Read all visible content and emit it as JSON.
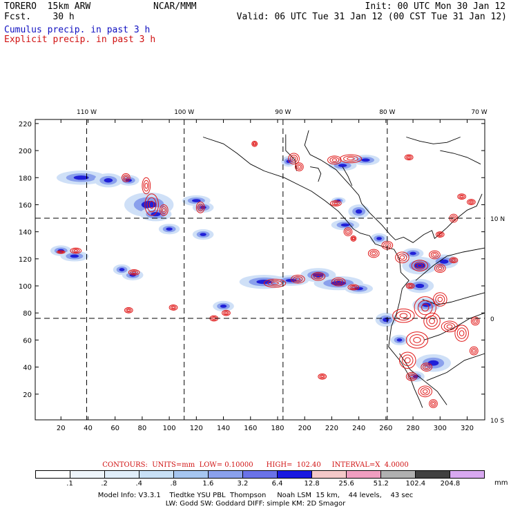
{
  "header": {
    "model": "TORERO  15km ARW",
    "fcst": "Fcst.    30 h",
    "org": "NCAR/MMM",
    "init": "Init: 00 UTC Mon 30 Jan 12",
    "valid": "Valid: 06 UTC Tue 31 Jan 12 (00 CST Tue 31 Jan 12)",
    "cumulus_label": "Cumulus precip. in past 3 h",
    "explicit_label": "Explicit precip. in past 3 h"
  },
  "colors": {
    "cumulus": "#1010c0",
    "explicit": "#d01010"
  },
  "chart_data": {
    "type": "map",
    "top_lon_ticks": [
      "110 W",
      "100 W",
      "90 W",
      "80 W",
      "70 W"
    ],
    "right_lat_ticks": [
      "10 N",
      "0",
      "10 S"
    ],
    "x_ticks": [
      "20",
      "40",
      "60",
      "80",
      "100",
      "120",
      "140",
      "160",
      "180",
      "200",
      "220",
      "240",
      "260",
      "280",
      "300",
      "320"
    ],
    "y_ticks": [
      "20",
      "40",
      "60",
      "80",
      "100",
      "120",
      "140",
      "160",
      "180",
      "200",
      "220"
    ],
    "xlim": [
      1,
      333
    ],
    "ylim": [
      1,
      223
    ],
    "grid_x": [
      39,
      111,
      184,
      261
    ],
    "grid_y": [
      76,
      150
    ],
    "series": [
      {
        "name": "Cumulus precip. in past 3 h",
        "type": "shaded"
      },
      {
        "name": "Explicit precip. in past 3 h",
        "type": "contour"
      }
    ],
    "cumulus_cells": [
      [
        35,
        180,
        14,
        4
      ],
      [
        55,
        178,
        8,
        4
      ],
      [
        70,
        178,
        6,
        3
      ],
      [
        85,
        160,
        14,
        7
      ],
      [
        90,
        153,
        9,
        4
      ],
      [
        120,
        163,
        8,
        3
      ],
      [
        125,
        158,
        6,
        3
      ],
      [
        20,
        126,
        6,
        3
      ],
      [
        30,
        122,
        8,
        3
      ],
      [
        73,
        108,
        6,
        3
      ],
      [
        65,
        112,
        5,
        3
      ],
      [
        100,
        142,
        6,
        3
      ],
      [
        125,
        138,
        6,
        3
      ],
      [
        170,
        103,
        14,
        4
      ],
      [
        190,
        104,
        10,
        3
      ],
      [
        210,
        108,
        10,
        4
      ],
      [
        225,
        102,
        14,
        4
      ],
      [
        240,
        98,
        8,
        3
      ],
      [
        140,
        85,
        6,
        3
      ],
      [
        230,
        145,
        8,
        3
      ],
      [
        255,
        135,
        5,
        3
      ],
      [
        240,
        155,
        6,
        4
      ],
      [
        285,
        115,
        10,
        5
      ],
      [
        303,
        118,
        8,
        4
      ],
      [
        285,
        100,
        8,
        4
      ],
      [
        290,
        86,
        8,
        4
      ],
      [
        295,
        43,
        10,
        5
      ],
      [
        282,
        33,
        5,
        3
      ],
      [
        260,
        75,
        6,
        4
      ],
      [
        270,
        60,
        5,
        3
      ],
      [
        228,
        189,
        8,
        3
      ],
      [
        245,
        193,
        8,
        3
      ],
      [
        188,
        192,
        4,
        3
      ],
      [
        225,
        163,
        4,
        2
      ],
      [
        280,
        124,
        6,
        3
      ]
    ],
    "explicit_cells": [
      [
        83,
        174,
        3,
        6
      ],
      [
        68,
        180,
        3,
        3
      ],
      [
        87,
        160,
        5,
        8
      ],
      [
        96,
        156,
        3,
        4
      ],
      [
        123,
        158,
        3,
        4
      ],
      [
        20,
        125,
        3,
        1
      ],
      [
        31,
        126,
        4,
        2
      ],
      [
        74,
        110,
        4,
        2
      ],
      [
        70,
        82,
        3,
        2
      ],
      [
        103,
        84,
        3,
        2
      ],
      [
        142,
        80,
        3,
        2
      ],
      [
        133,
        76,
        3,
        2
      ],
      [
        178,
        102,
        8,
        3
      ],
      [
        195,
        105,
        5,
        3
      ],
      [
        210,
        107,
        5,
        3
      ],
      [
        225,
        103,
        5,
        3
      ],
      [
        236,
        99,
        4,
        2
      ],
      [
        234,
        194,
        8,
        3
      ],
      [
        222,
        193,
        5,
        3
      ],
      [
        192,
        194,
        4,
        4
      ],
      [
        196,
        188,
        3,
        3
      ],
      [
        223,
        161,
        4,
        2
      ],
      [
        232,
        140,
        3,
        3
      ],
      [
        236,
        135,
        2,
        2
      ],
      [
        251,
        124,
        4,
        3
      ],
      [
        261,
        130,
        4,
        3
      ],
      [
        272,
        121,
        5,
        4
      ],
      [
        285,
        115,
        6,
        4
      ],
      [
        278,
        100,
        3,
        2
      ],
      [
        296,
        123,
        4,
        3
      ],
      [
        300,
        113,
        4,
        3
      ],
      [
        310,
        119,
        3,
        2
      ],
      [
        300,
        138,
        3,
        2
      ],
      [
        310,
        150,
        3,
        3
      ],
      [
        316,
        166,
        3,
        2
      ],
      [
        323,
        162,
        3,
        2
      ],
      [
        289,
        84,
        8,
        8
      ],
      [
        294,
        74,
        6,
        6
      ],
      [
        300,
        90,
        5,
        5
      ],
      [
        273,
        78,
        8,
        5
      ],
      [
        283,
        60,
        8,
        6
      ],
      [
        276,
        45,
        6,
        6
      ],
      [
        279,
        33,
        4,
        3
      ],
      [
        307,
        70,
        6,
        4
      ],
      [
        316,
        65,
        5,
        6
      ],
      [
        325,
        52,
        3,
        3
      ],
      [
        326,
        74,
        3,
        3
      ],
      [
        289,
        22,
        5,
        4
      ],
      [
        295,
        13,
        3,
        3
      ],
      [
        290,
        40,
        4,
        3
      ],
      [
        213,
        33,
        3,
        2
      ],
      [
        277,
        195,
        3,
        2
      ],
      [
        163,
        205,
        2,
        2
      ]
    ],
    "coastlines": [
      [
        [
          203,
          215
        ],
        [
          200,
          204
        ],
        [
          204,
          197
        ],
        [
          212,
          193
        ],
        [
          223,
          186
        ],
        [
          233,
          175
        ],
        [
          240,
          167
        ],
        [
          242,
          161
        ],
        [
          248,
          154
        ],
        [
          257,
          145
        ],
        [
          263,
          138
        ],
        [
          267,
          134
        ],
        [
          273,
          136
        ],
        [
          280,
          132
        ],
        [
          288,
          138
        ],
        [
          294,
          141
        ],
        [
          296,
          135
        ],
        [
          305,
          143
        ],
        [
          310,
          148
        ],
        [
          320,
          156
        ],
        [
          327,
          159
        ],
        [
          331,
          168
        ]
      ],
      [
        [
          125,
          210
        ],
        [
          140,
          205
        ],
        [
          150,
          198
        ],
        [
          160,
          190
        ],
        [
          170,
          185
        ],
        [
          185,
          180
        ],
        [
          195,
          175
        ],
        [
          205,
          170
        ],
        [
          215,
          163
        ],
        [
          225,
          155
        ],
        [
          232,
          147
        ],
        [
          236,
          142
        ],
        [
          241,
          139
        ],
        [
          248,
          137
        ],
        [
          252,
          131
        ],
        [
          258,
          129
        ],
        [
          266,
          127
        ],
        [
          270,
          120
        ],
        [
          271,
          110
        ],
        [
          277,
          104
        ],
        [
          272,
          98
        ],
        [
          270,
          88
        ],
        [
          268,
          80
        ],
        [
          264,
          70
        ],
        [
          262,
          55
        ],
        [
          271,
          44
        ],
        [
          278,
          32
        ],
        [
          281,
          24
        ],
        [
          285,
          15
        ],
        [
          287,
          10
        ]
      ],
      [
        [
          186,
          212
        ],
        [
          186,
          200
        ],
        [
          193,
          193
        ],
        [
          194,
          185
        ]
      ],
      [
        [
          204,
          188
        ],
        [
          210,
          187
        ],
        [
          212,
          183
        ],
        [
          210,
          177
        ]
      ],
      [
        [
          228,
          188
        ],
        [
          232,
          181
        ],
        [
          235,
          174
        ]
      ],
      [
        [
          275,
          210
        ],
        [
          285,
          207
        ],
        [
          295,
          205
        ],
        [
          305,
          206
        ],
        [
          315,
          210
        ]
      ],
      [
        [
          300,
          200
        ],
        [
          310,
          198
        ],
        [
          320,
          195
        ],
        [
          330,
          190
        ]
      ],
      [
        [
          282,
          104
        ],
        [
          295,
          115
        ],
        [
          305,
          122
        ],
        [
          317,
          125
        ],
        [
          333,
          128
        ]
      ],
      [
        [
          287,
          90
        ],
        [
          298,
          86
        ],
        [
          308,
          88
        ],
        [
          322,
          92
        ],
        [
          333,
          95
        ]
      ],
      [
        [
          288,
          60
        ],
        [
          300,
          64
        ],
        [
          312,
          70
        ],
        [
          322,
          76
        ],
        [
          333,
          80
        ]
      ],
      [
        [
          290,
          30
        ],
        [
          305,
          36
        ],
        [
          318,
          45
        ],
        [
          333,
          50
        ]
      ],
      [
        [
          270,
          50
        ],
        [
          278,
          38
        ],
        [
          288,
          30
        ],
        [
          298,
          22
        ],
        [
          305,
          12
        ]
      ]
    ]
  },
  "colorbar": {
    "contours_text": "CONTOURS:  UNITS=mm  LOW= 0.10000      HIGH=  102.40     INTERVAL=X  4.0000",
    "colors": [
      "#ffffff",
      "#eef5fb",
      "#e0eefa",
      "#c8e0f6",
      "#a6c6f0",
      "#8aa0ec",
      "#6a72e8",
      "#1a1ae0",
      "#f4c8c8",
      "#f09ec0",
      "#b0b0b0",
      "#404040",
      "#d8a8f0"
    ],
    "labels": [
      ".1",
      ".2",
      ".4",
      ".8",
      "1.6",
      "3.2",
      "6.4",
      "12.8",
      "25.6",
      "51.2",
      "102.4",
      "204.8"
    ],
    "unit": "mm"
  },
  "model_info": {
    "line1": "Model Info: V3.3.1    Tiedtke YSU PBL  Thompson     Noah LSM  15 km,    44 levels,    43 sec",
    "line2": "LW: Godd SW: Goddard DIFF: simple KM: 2D Smagor"
  }
}
